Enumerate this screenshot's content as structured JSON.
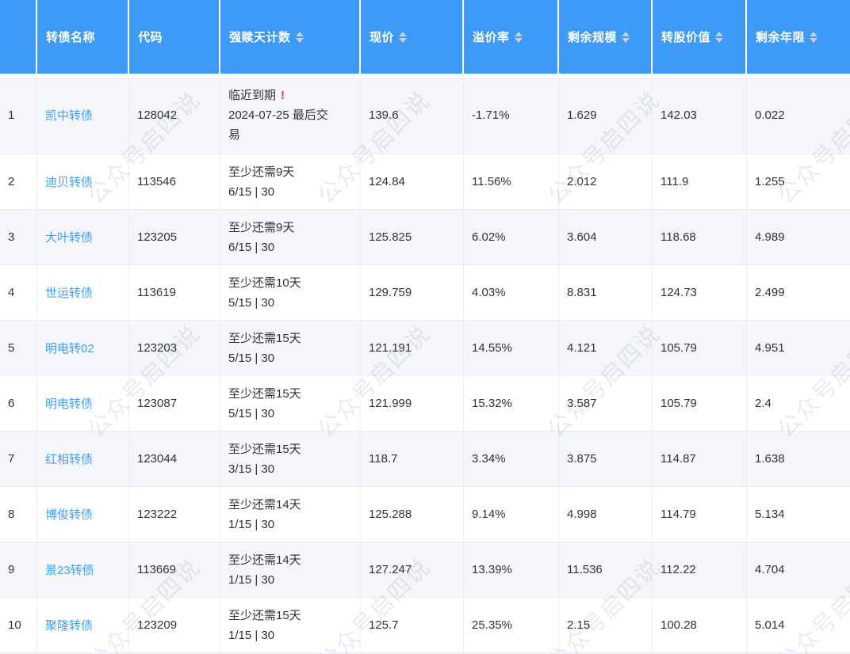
{
  "watermark": {
    "text": "公众号启四说"
  },
  "colors": {
    "header_bg": "#3d9bf7",
    "header_text": "#ffffff",
    "link": "#409ff8",
    "body_text": "#2f3237",
    "alert_red": "#ec3b3b",
    "stripe_bg": "#f4f6f9",
    "row_bg": "#ffffff",
    "border": "#ebeef5",
    "sort_caret": "#c9cfda"
  },
  "icons": {
    "sort": "caret-up-down-icon"
  },
  "table": {
    "headers": {
      "index": "",
      "name": "转债名称",
      "code": "代码",
      "redeem": "强赎天计数",
      "price": "现价",
      "premium": "溢价率",
      "size": "剩余规模",
      "value": "转股价值",
      "years": "剩余年限"
    },
    "rows": [
      {
        "index": "1",
        "name": "凯中转债",
        "code": "128042",
        "redeem_line1": "临近到期",
        "redeem_alert": "!",
        "redeem_line2": "2024-07-25 最后交易",
        "price": "139.6",
        "premium": "-1.71%",
        "size": "1.629",
        "value": "142.03",
        "years": "0.022"
      },
      {
        "index": "2",
        "name": "迪贝转债",
        "code": "113546",
        "redeem_line1": "至少还需9天",
        "redeem_line2": "6/15 | 30",
        "price": "124.84",
        "premium": "11.56%",
        "size": "2.012",
        "value": "111.9",
        "years": "1.255"
      },
      {
        "index": "3",
        "name": "大叶转债",
        "code": "123205",
        "redeem_line1": "至少还需9天",
        "redeem_line2": "6/15 | 30",
        "price": "125.825",
        "premium": "6.02%",
        "size": "3.604",
        "value": "118.68",
        "years": "4.989"
      },
      {
        "index": "4",
        "name": "世运转债",
        "code": "113619",
        "redeem_line1": "至少还需10天",
        "redeem_line2": "5/15 | 30",
        "price": "129.759",
        "premium": "4.03%",
        "size": "8.831",
        "value": "124.73",
        "years": "2.499"
      },
      {
        "index": "5",
        "name": "明电转02",
        "code": "123203",
        "redeem_line1": "至少还需15天",
        "redeem_line2": "5/15 | 30",
        "price": "121.191",
        "premium": "14.55%",
        "size": "4.121",
        "value": "105.79",
        "years": "4.951"
      },
      {
        "index": "6",
        "name": "明电转债",
        "code": "123087",
        "redeem_line1": "至少还需15天",
        "redeem_line2": "5/15 | 30",
        "price": "121.999",
        "premium": "15.32%",
        "size": "3.587",
        "value": "105.79",
        "years": "2.4"
      },
      {
        "index": "7",
        "name": "红相转债",
        "code": "123044",
        "redeem_line1": "至少还需15天",
        "redeem_line2": "3/15 | 30",
        "price": "118.7",
        "premium": "3.34%",
        "size": "3.875",
        "value": "114.87",
        "years": "1.638"
      },
      {
        "index": "8",
        "name": "博俊转债",
        "code": "123222",
        "redeem_line1": "至少还需14天",
        "redeem_line2": "1/15 | 30",
        "price": "125.288",
        "premium": "9.14%",
        "size": "4.998",
        "value": "114.79",
        "years": "5.134"
      },
      {
        "index": "9",
        "name": "景23转债",
        "code": "113669",
        "redeem_line1": "至少还需14天",
        "redeem_line2": "1/15 | 30",
        "price": "127.247",
        "premium": "13.39%",
        "size": "11.536",
        "value": "112.22",
        "years": "4.704"
      },
      {
        "index": "10",
        "name": "聚隆转债",
        "code": "123209",
        "redeem_line1": "至少还需15天",
        "redeem_line2": "1/15 | 30",
        "price": "125.7",
        "premium": "25.35%",
        "size": "2.15",
        "value": "100.28",
        "years": "5.014"
      }
    ]
  }
}
